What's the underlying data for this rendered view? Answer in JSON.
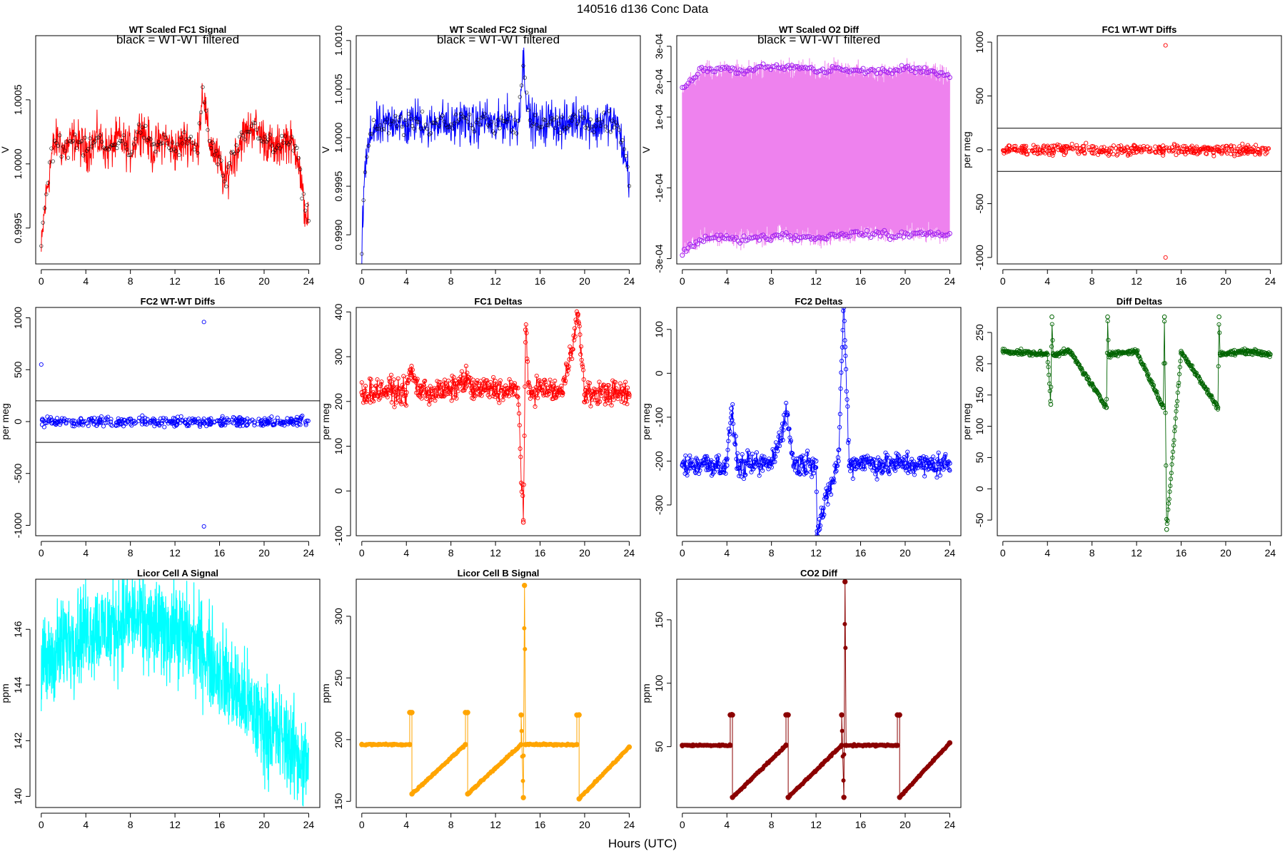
{
  "figure": {
    "title": "140516    d136    Conc Data",
    "xlabel": "Hours (UTC)"
  },
  "chart_data": [
    {
      "type": "line",
      "title": "WT Scaled FC1 Signal",
      "annotation": "black = WT-WT filtered",
      "ylabel": "V",
      "color": "#ff0000",
      "style": "dense_band",
      "xlim": [
        -0.5,
        25
      ],
      "ylim": [
        0.99922,
        1.001
      ],
      "yticks": [
        0.9995,
        1.0,
        1.0005
      ],
      "ytick_labels": [
        "0.9995",
        "1.0000",
        "1.0005"
      ],
      "xticks": [
        0,
        4,
        8,
        12,
        16,
        20,
        24
      ],
      "series": [
        {
          "x": [
            0,
            0.2,
            0.5,
            1,
            1.5,
            2,
            3,
            4,
            5,
            6,
            7,
            8,
            9,
            10,
            11,
            12,
            13,
            14,
            14.5,
            15,
            16,
            16.5,
            17,
            18,
            19,
            20,
            21,
            22,
            23,
            23.5,
            24
          ],
          "y": [
            0.9993,
            0.99955,
            0.9998,
            1.0001,
            1.0002,
            1.0001,
            1.0002,
            1.0001,
            1.0002,
            1.0001,
            1.0002,
            1.0001,
            1.0003,
            1.0001,
            1.0002,
            1.0001,
            1.0002,
            1.0001,
            1.0006,
            1.0002,
            1.0,
            0.99985,
            1.0,
            1.0002,
            1.0003,
            1.0002,
            1.0001,
            1.0002,
            1.0001,
            0.9997,
            0.99955
          ]
        }
      ]
    },
    {
      "type": "line",
      "title": "WT Scaled FC2 Signal",
      "annotation": "black = WT-WT filtered",
      "ylabel": "V",
      "color": "#0000ff",
      "style": "dense_band",
      "xlim": [
        -0.5,
        25
      ],
      "ylim": [
        0.9987,
        1.00105
      ],
      "yticks": [
        0.999,
        0.9995,
        1.0,
        1.0005,
        1.001
      ],
      "ytick_labels": [
        "0.9990",
        "0.9995",
        "1.0000",
        "1.0005",
        "1.0010"
      ],
      "xticks": [
        0,
        4,
        8,
        12,
        16,
        20,
        24
      ],
      "series": [
        {
          "x": [
            0,
            0.2,
            0.5,
            1,
            2,
            3,
            4,
            5,
            6,
            7,
            8,
            9,
            10,
            11,
            12,
            13,
            14,
            14.5,
            15,
            16,
            17,
            18,
            19,
            20,
            21,
            22,
            23,
            23.5,
            24
          ],
          "y": [
            0.9988,
            0.99955,
            0.99985,
            1.0001,
            1.0001,
            1.0002,
            1.0001,
            1.0002,
            1.0001,
            1.0002,
            1.0001,
            1.0002,
            1.0001,
            1.0002,
            1.0001,
            1.0002,
            1.0001,
            1.0008,
            1.0002,
            1.0001,
            1.0002,
            1.0001,
            1.0002,
            1.0002,
            1.0001,
            1.0002,
            1.0001,
            0.99985,
            0.9996
          ]
        }
      ]
    },
    {
      "type": "scatter",
      "title": "WT Scaled O2 Diff",
      "annotation": "black = WT-WT filtered",
      "ylabel": "V",
      "color": "#ee82ee",
      "marker_color": "#a020f0",
      "style": "band_with_points",
      "xlim": [
        -0.5,
        25
      ],
      "ylim": [
        -0.000315,
        0.00033
      ],
      "yticks": [
        -0.0003,
        -0.0001,
        0.0001,
        0.0002,
        0.0003
      ],
      "ytick_labels": [
        "-3e-04",
        "-1e-04",
        "1e-04",
        "2e-04",
        "3e-04"
      ],
      "xticks": [
        0,
        4,
        8,
        12,
        16,
        20,
        24
      ],
      "series": [
        {
          "name": "upper",
          "x": [
            0,
            1,
            2,
            3,
            4,
            5,
            6,
            7,
            8,
            9,
            10,
            11,
            12,
            13,
            14,
            15,
            16,
            17,
            18,
            19,
            20,
            21,
            22,
            23,
            24
          ],
          "y": [
            0.00018,
            0.00021,
            0.00024,
            0.00023,
            0.00024,
            0.00023,
            0.00023,
            0.00024,
            0.00024,
            0.00024,
            0.00024,
            0.00024,
            0.00023,
            0.00023,
            0.00024,
            0.00023,
            0.00023,
            0.00023,
            0.00023,
            0.00023,
            0.00024,
            0.00023,
            0.00023,
            0.00022,
            0.00022
          ]
        },
        {
          "name": "lower",
          "x": [
            0,
            1,
            2,
            3,
            4,
            5,
            6,
            7,
            8,
            9,
            10,
            11,
            12,
            13,
            14,
            15,
            16,
            17,
            18,
            19,
            20,
            21,
            22,
            23,
            24
          ],
          "y": [
            -0.00028,
            -0.00026,
            -0.00024,
            -0.00024,
            -0.00024,
            -0.00025,
            -0.00024,
            -0.00024,
            -0.00024,
            -0.00023,
            -0.00024,
            -0.00024,
            -0.00024,
            -0.00024,
            -0.00023,
            -0.00023,
            -0.00023,
            -0.00023,
            -0.00023,
            -0.00024,
            -0.00023,
            -0.00023,
            -0.00023,
            -0.00023,
            -0.00023
          ]
        }
      ]
    },
    {
      "type": "scatter",
      "title": "FC1 WT-WT Diffs",
      "ylabel": "per meg",
      "color": "#ff0000",
      "style": "points_with_bounds",
      "xlim": [
        -0.5,
        25
      ],
      "ylim": [
        -1060,
        1060
      ],
      "yticks": [
        -1000,
        -500,
        0,
        500,
        1000
      ],
      "ytick_labels": [
        "-1000",
        "-500",
        "0",
        "500",
        "1000"
      ],
      "xticks": [
        0,
        4,
        8,
        12,
        16,
        20,
        24
      ],
      "hlines": [
        200,
        -200
      ],
      "series": [
        {
          "x": [
            0,
            2,
            4,
            6,
            8,
            10,
            12,
            14,
            14.6,
            16,
            18,
            20,
            22,
            24
          ],
          "y": [
            20,
            10,
            -10,
            5,
            0,
            15,
            -20,
            10,
            970,
            -30,
            10,
            0,
            5,
            -10
          ]
        }
      ],
      "outliers": [
        {
          "x": 14.6,
          "y": 970
        },
        {
          "x": 14.6,
          "y": -1000
        }
      ]
    },
    {
      "type": "scatter",
      "title": "FC2 WT-WT Diffs",
      "ylabel": "per meg",
      "color": "#0000ff",
      "style": "points_with_bounds",
      "xlim": [
        -0.5,
        25
      ],
      "ylim": [
        -1100,
        1100
      ],
      "yticks": [
        -1000,
        -500,
        0,
        500,
        1000
      ],
      "ytick_labels": [
        "-1000",
        "-500",
        "0",
        "500",
        "1000"
      ],
      "xticks": [
        0,
        4,
        8,
        12,
        16,
        20,
        24
      ],
      "hlines": [
        200,
        -200
      ],
      "series": [
        {
          "x": [
            0,
            2,
            4,
            6,
            8,
            10,
            12,
            14,
            16,
            18,
            20,
            22,
            24
          ],
          "y": [
            10,
            20,
            -5,
            5,
            0,
            -10,
            15,
            0,
            10,
            -20,
            5,
            10,
            0
          ]
        }
      ],
      "outliers": [
        {
          "x": 0,
          "y": 550
        },
        {
          "x": 14.6,
          "y": 960
        },
        {
          "x": 14.6,
          "y": -1010
        }
      ]
    },
    {
      "type": "line",
      "title": "FC1 Deltas",
      "ylabel": "per meg",
      "color": "#ff0000",
      "style": "noisy_line_points",
      "xlim": [
        -0.5,
        25
      ],
      "ylim": [
        -100,
        410
      ],
      "yticks": [
        -100,
        0,
        100,
        200,
        300,
        400
      ],
      "ytick_labels": [
        "-100",
        "0",
        "100",
        "200",
        "300",
        "400"
      ],
      "xticks": [
        0,
        4,
        8,
        12,
        16,
        20,
        24
      ],
      "series": [
        {
          "x": [
            0,
            2,
            4,
            4.4,
            5,
            6,
            8,
            9.4,
            10,
            12,
            13,
            14,
            14.5,
            14.7,
            15,
            16,
            18,
            19.4,
            20,
            22,
            24
          ],
          "y": [
            220,
            225,
            220,
            270,
            230,
            220,
            225,
            250,
            225,
            230,
            220,
            230,
            -70,
            360,
            220,
            230,
            220,
            395,
            215,
            220,
            215
          ]
        }
      ],
      "spread": 40
    },
    {
      "type": "line",
      "title": "FC2 Deltas",
      "ylabel": "per meg",
      "color": "#0000ff",
      "style": "noisy_line_points",
      "xlim": [
        -0.5,
        25
      ],
      "ylim": [
        -370,
        150
      ],
      "yticks": [
        -300,
        -200,
        -100,
        0,
        100
      ],
      "ytick_labels": [
        "-300",
        "-200",
        "-100",
        "0",
        "100"
      ],
      "xticks": [
        0,
        4,
        8,
        12,
        16,
        20,
        24
      ],
      "series": [
        {
          "x": [
            0,
            2,
            4,
            4.4,
            5,
            6,
            8,
            9.4,
            10,
            12,
            12.1,
            14,
            14.5,
            14.6,
            15,
            16,
            18,
            20,
            22,
            24
          ],
          "y": [
            -210,
            -205,
            -210,
            -80,
            -215,
            -210,
            -205,
            -90,
            -210,
            -200,
            -360,
            -200,
            170,
            60,
            -210,
            -200,
            -210,
            -205,
            -210,
            -205
          ]
        }
      ],
      "spread": 40
    },
    {
      "type": "line",
      "title": "Diff Deltas",
      "ylabel": "per meg",
      "color": "#006400",
      "style": "noisy_line_points",
      "xlim": [
        -0.5,
        25
      ],
      "ylim": [
        -75,
        290
      ],
      "yticks": [
        -50,
        0,
        50,
        100,
        150,
        200,
        250
      ],
      "ytick_labels": [
        "-50",
        "0",
        "50",
        "100",
        "150",
        "200",
        "250"
      ],
      "xticks": [
        0,
        4,
        8,
        12,
        16,
        20,
        24
      ],
      "series": [
        {
          "x": [
            0,
            4,
            4.3,
            4.4,
            4.5,
            6,
            9.3,
            9.4,
            9.5,
            12,
            14.4,
            14.5,
            14.7,
            16,
            19.3,
            19.4,
            19.5,
            22,
            24
          ],
          "y": [
            220,
            215,
            135,
            275,
            215,
            220,
            130,
            275,
            215,
            220,
            130,
            275,
            -65,
            220,
            130,
            275,
            215,
            220,
            215
          ]
        }
      ],
      "spread": 6
    },
    {
      "type": "line",
      "title": "Licor Cell A Signal",
      "ylabel": "ppm",
      "color": "#00ffff",
      "style": "dense_fill",
      "xlim": [
        -0.5,
        25
      ],
      "ylim": [
        139.6,
        147.8
      ],
      "yticks": [
        140,
        142,
        144,
        146
      ],
      "ytick_labels": [
        "140",
        "142",
        "144",
        "146"
      ],
      "xticks": [
        0,
        4,
        8,
        12,
        16,
        20,
        24
      ],
      "series": [
        {
          "x": [
            0,
            2,
            4,
            6,
            8,
            10,
            12,
            14,
            16,
            18,
            20,
            22,
            24
          ],
          "y": [
            144.5,
            145.5,
            146,
            146,
            146.5,
            146,
            146,
            145.5,
            144.5,
            143.5,
            142.5,
            142,
            141
          ]
        }
      ]
    },
    {
      "type": "line",
      "title": "Licor Cell B Signal",
      "ylabel": "ppm",
      "color": "#ffa500",
      "style": "spiky_line",
      "xlim": [
        -0.5,
        25
      ],
      "ylim": [
        145,
        330
      ],
      "yticks": [
        150,
        200,
        250,
        300
      ],
      "ytick_labels": [
        "150",
        "200",
        "250",
        "300"
      ],
      "xticks": [
        0,
        4,
        8,
        12,
        16,
        20,
        24
      ],
      "series": [
        {
          "x": [
            0,
            4.3,
            4.3,
            4.5,
            4.5,
            9.3,
            9.3,
            9.5,
            9.5,
            14.3,
            14.3,
            14.5,
            14.6,
            14.7,
            19.3,
            19.3,
            19.5,
            19.5,
            24
          ],
          "y": [
            196,
            196,
            222,
            222,
            156,
            196,
            222,
            222,
            156,
            196,
            220,
            153,
            325,
            196,
            196,
            220,
            220,
            152,
            194
          ]
        }
      ]
    },
    {
      "type": "line",
      "title": "CO2 Diff",
      "ylabel": "ppm",
      "color": "#8b0000",
      "style": "spiky_line",
      "xlim": [
        -0.5,
        25
      ],
      "ylim": [
        2,
        182
      ],
      "yticks": [
        50,
        100,
        150
      ],
      "ytick_labels": [
        "50",
        "100",
        "150"
      ],
      "xticks": [
        0,
        4,
        8,
        12,
        16,
        20,
        24
      ],
      "series": [
        {
          "x": [
            0,
            4.3,
            4.3,
            4.5,
            4.5,
            9.3,
            9.3,
            9.5,
            9.5,
            14.3,
            14.3,
            14.5,
            14.6,
            14.7,
            19.3,
            19.3,
            19.5,
            19.5,
            24
          ],
          "y": [
            51,
            51,
            75,
            75,
            10,
            51,
            75,
            75,
            10,
            51,
            75,
            10,
            180,
            51,
            51,
            75,
            75,
            10,
            53
          ]
        }
      ]
    }
  ]
}
